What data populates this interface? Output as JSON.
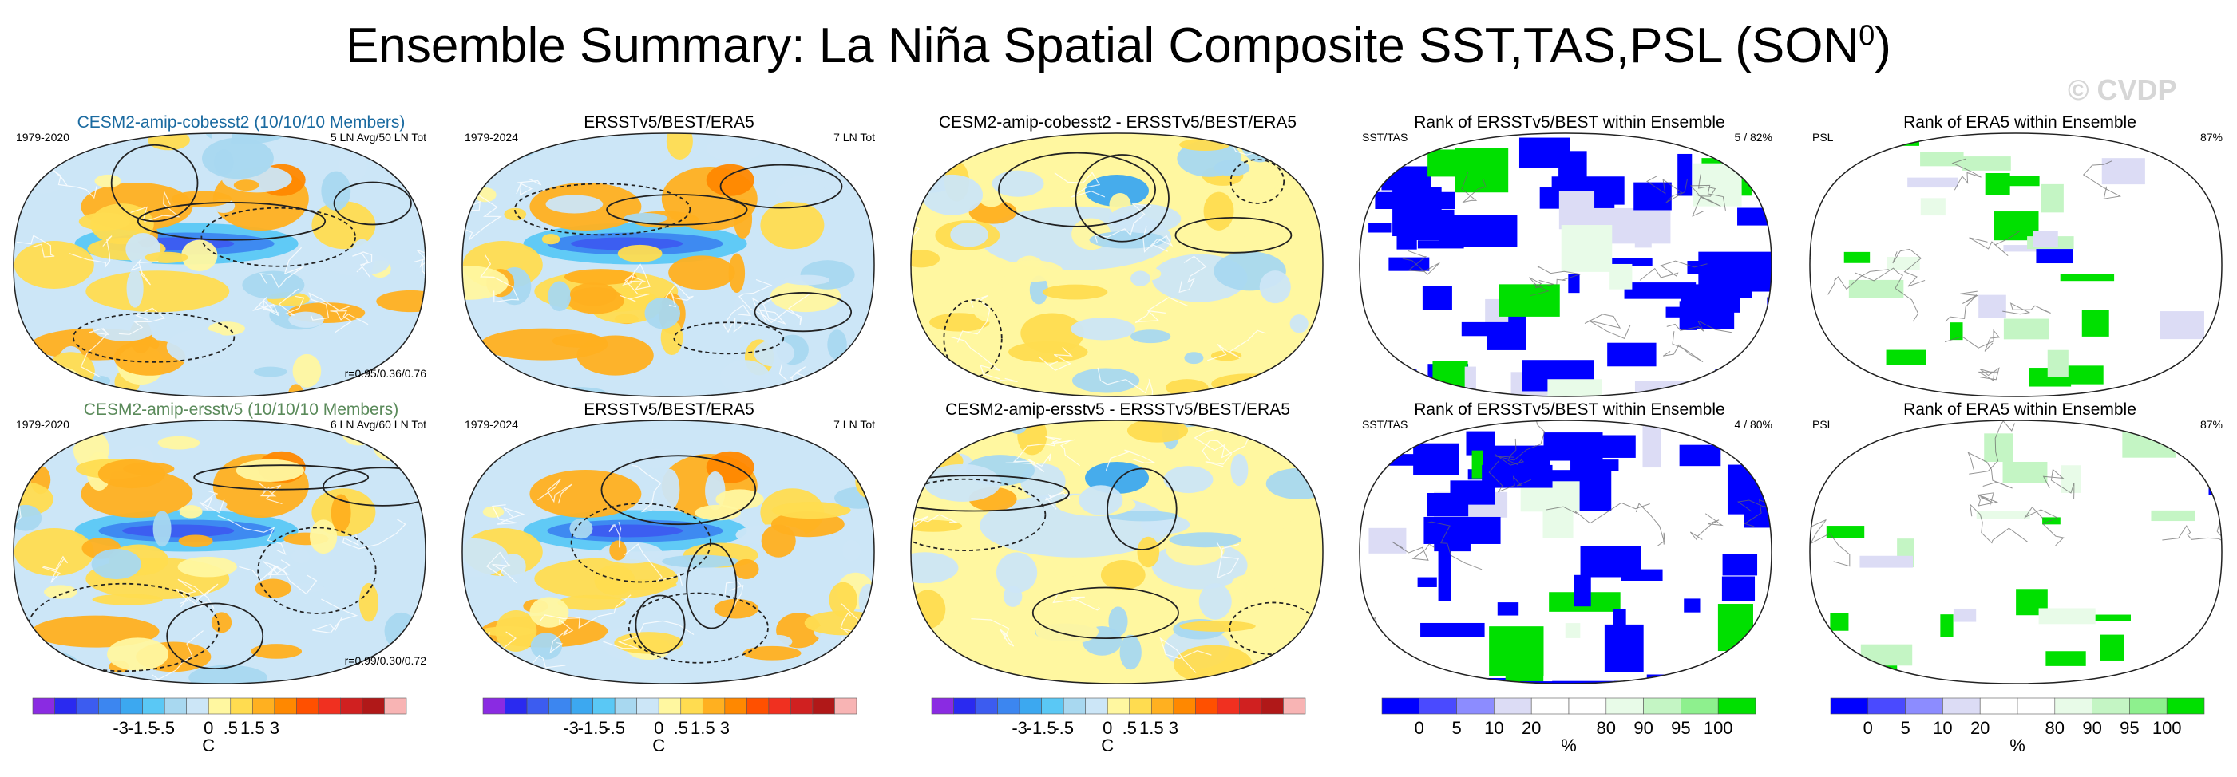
{
  "title": {
    "main": "Ensemble Summary: La Niña Spatial Composite SST,TAS,PSL (SON",
    "sup": "0",
    "close": ")"
  },
  "watermark": "© CVDP",
  "colors": {
    "ensemble_title_row1": "#1a6aa0",
    "ensemble_title_row2": "#5a8a5a",
    "diverging": [
      "#8a2be2",
      "#2a2af0",
      "#3c5cf0",
      "#3c86f0",
      "#3ca8f0",
      "#5ac8f5",
      "#a8d8f0",
      "#cce6f7",
      "#fff7a0",
      "#ffdc50",
      "#ffb020",
      "#ff8800",
      "#ff5000",
      "#f03020",
      "#d02020",
      "#b01818",
      "#f8b4b4"
    ],
    "rank": [
      "#0000ff",
      "#4a4aff",
      "#8c8cff",
      "#dcdcf5",
      "#ffffff",
      "#ffffff",
      "#e8fbe8",
      "#c4f5c4",
      "#8ef08e",
      "#00e000"
    ]
  },
  "panels": [
    {
      "title": "CESM2-amip-cobesst2 (10/10/10 Members)",
      "left": "1979-2020",
      "right": "5 LN Avg/50 LN Tot",
      "bottom": "r=0.95/0.36/0.76",
      "kind": "composite"
    },
    {
      "title": "ERSSTv5/BEST/ERA5",
      "left": "1979-2024",
      "right": "7 LN Tot",
      "bottom": "",
      "kind": "composite"
    },
    {
      "title": "CESM2-amip-cobesst2 - ERSSTv5/BEST/ERA5",
      "left": "",
      "right": "",
      "bottom": "",
      "kind": "difference"
    },
    {
      "title": "Rank of ERSSTv5/BEST within Ensemble",
      "left": "SST/TAS",
      "right": "5 /  82%",
      "bottom": "",
      "kind": "rank"
    },
    {
      "title": "Rank of ERA5 within Ensemble",
      "left": "PSL",
      "right": "87%",
      "bottom": "",
      "kind": "rankpsl"
    },
    {
      "title": "CESM2-amip-ersstv5 (10/10/10 Members)",
      "left": "1979-2020",
      "right": "6 LN Avg/60 LN Tot",
      "bottom": "r=0.99/0.30/0.72",
      "kind": "composite"
    },
    {
      "title": "ERSSTv5/BEST/ERA5",
      "left": "1979-2024",
      "right": "7 LN Tot",
      "bottom": "",
      "kind": "composite"
    },
    {
      "title": "CESM2-amip-ersstv5 - ERSSTv5/BEST/ERA5",
      "left": "",
      "right": "",
      "bottom": "",
      "kind": "difference"
    },
    {
      "title": "Rank of ERSSTv5/BEST within Ensemble",
      "left": "SST/TAS",
      "right": "4 /  80%",
      "bottom": "",
      "kind": "rank"
    },
    {
      "title": "Rank of ERA5 within Ensemble",
      "left": "PSL",
      "right": "87%",
      "bottom": "",
      "kind": "rankpsl"
    }
  ],
  "colorbars": [
    {
      "type": "diverging",
      "ticks": [
        "-3",
        "-1.5",
        "-.5",
        "0",
        ".5",
        "1.5",
        "3"
      ],
      "unit": "C"
    },
    {
      "type": "diverging",
      "ticks": [
        "-3",
        "-1.5",
        "-.5",
        "0",
        ".5",
        "1.5",
        "3"
      ],
      "unit": "C"
    },
    {
      "type": "diverging",
      "ticks": [
        "-3",
        "-1.5",
        "-.5",
        "0",
        ".5",
        "1.5",
        "3"
      ],
      "unit": "C"
    },
    {
      "type": "rank",
      "ticks": [
        "0",
        "5",
        "10",
        "20",
        "80",
        "90",
        "95",
        "100"
      ],
      "unit": "%"
    },
    {
      "type": "rank",
      "ticks": [
        "0",
        "5",
        "10",
        "20",
        "80",
        "90",
        "95",
        "100"
      ],
      "unit": "%"
    }
  ],
  "chart_data": {
    "type": "heatmap",
    "title": "Ensemble Summary: La Niña Spatial Composite SST,TAS,PSL (SON0)",
    "xlabel": "",
    "ylabel": "",
    "projection": "Robinson (global)",
    "variables": [
      "SST",
      "TAS",
      "PSL"
    ],
    "season": "SON",
    "composite_colorbar": {
      "unit": "C",
      "levels": [
        -3,
        -1.5,
        -0.5,
        0,
        0.5,
        1.5,
        3
      ]
    },
    "rank_colorbar": {
      "unit": "%",
      "levels": [
        0,
        5,
        10,
        20,
        80,
        90,
        95,
        100
      ]
    },
    "rows": [
      {
        "ensemble": "CESM2-amip-cobesst2",
        "members": "10/10/10",
        "period": "1979-2020",
        "events": "5 LN Avg/50 LN Tot",
        "pattern_correlation": [
          0.95,
          0.36,
          0.76
        ],
        "obs_rank_sst_tas": {
          "rank": 5,
          "percent": 82
        },
        "obs_rank_psl_percent": 87
      },
      {
        "ensemble": "CESM2-amip-ersstv5",
        "members": "10/10/10",
        "period": "1979-2020",
        "events": "6 LN Avg/60 LN Tot",
        "pattern_correlation": [
          0.99,
          0.3,
          0.72
        ],
        "obs_rank_sst_tas": {
          "rank": 4,
          "percent": 80
        },
        "obs_rank_psl_percent": 87
      }
    ],
    "observations": {
      "name": "ERSSTv5/BEST/ERA5",
      "period": "1979-2024",
      "events": "7 LN Tot"
    }
  }
}
